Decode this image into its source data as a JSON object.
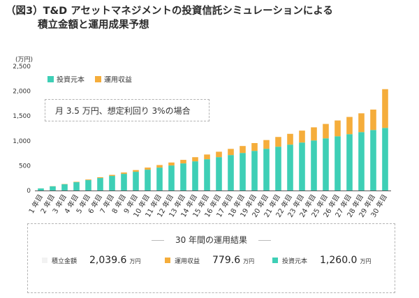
{
  "header": {
    "title_line1": "（図3）T&D アセットマネジメントの投資信託シミュレーションによる",
    "title_line2": "積立金額と運用成果予想"
  },
  "chart_data": {
    "type": "bar",
    "stacked": true,
    "unit_label": "(万円)",
    "ylim": [
      0,
      2500
    ],
    "yticks": [
      "0",
      "500",
      "1,000",
      "1,500",
      "2,000",
      "2,500"
    ],
    "ytick_values": [
      0,
      500,
      1000,
      1500,
      2000,
      2500
    ],
    "grid": false,
    "legend_position": "top-left",
    "categories": [
      "1 年目",
      "2 年目",
      "3 年目",
      "4 年目",
      "5 年目",
      "6 年目",
      "7 年目",
      "8 年目",
      "9 年目",
      "10 年目",
      "11 年目",
      "12 年目",
      "13 年目",
      "14 年目",
      "15 年目",
      "16 年目",
      "17 年目",
      "18 年目",
      "19 年目",
      "20 年目",
      "21 年目",
      "22 年目",
      "23 年目",
      "24 年目",
      "25 年目",
      "26 年目",
      "27 年目",
      "28 年目",
      "29 年目",
      "30 年目"
    ],
    "series": [
      {
        "name": "投資元本",
        "color": "#3ecfb6",
        "values": [
          42,
          84,
          126,
          168,
          210,
          252,
          294,
          336,
          378,
          420,
          462,
          504,
          546,
          588,
          630,
          672,
          714,
          756,
          798,
          840,
          882,
          924,
          966,
          1008,
          1050,
          1092,
          1134,
          1176,
          1218,
          1260
        ]
      },
      {
        "name": "運用収益",
        "color": "#f5ad3b",
        "values": [
          1,
          3,
          5,
          8,
          12,
          16,
          21,
          27,
          34,
          42,
          51,
          60,
          71,
          83,
          95,
          109,
          124,
          140,
          157,
          176,
          196,
          217,
          240,
          264,
          290,
          318,
          347,
          378,
          411,
          780
        ]
      }
    ]
  },
  "note": "月 3.5 万円、想定利回り 3%の場合",
  "results": {
    "title": "30 年間の運用結果",
    "items": [
      {
        "label": "積立金額",
        "value": "2,039.6",
        "unit": "万円",
        "color": "#f2f2f2"
      },
      {
        "label": "運用収益",
        "value": "779.6",
        "unit": "万円",
        "color": "#f5ad3b"
      },
      {
        "label": "投資元本",
        "value": "1,260.0",
        "unit": "万円",
        "color": "#3ecfb6"
      }
    ]
  }
}
